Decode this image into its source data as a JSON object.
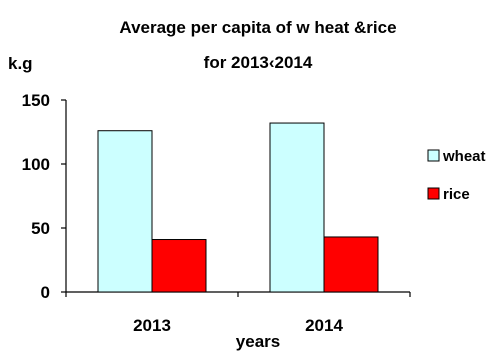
{
  "chart_data": {
    "type": "bar",
    "title_line1": "Average per capita of w heat &rice",
    "title_line2": "for 2013‹2014",
    "ylabel": "k.g",
    "xlabel": "years",
    "categories": [
      "2013",
      "2014"
    ],
    "series": [
      {
        "name": "wheat",
        "values": [
          126,
          132
        ],
        "color": "#ccffff"
      },
      {
        "name": "rice",
        "values": [
          41,
          43
        ],
        "color": "#ff0000"
      }
    ],
    "ylim": [
      0,
      150
    ],
    "yticks": [
      0,
      50,
      100,
      150
    ],
    "grid": false,
    "legend_position": "right"
  }
}
